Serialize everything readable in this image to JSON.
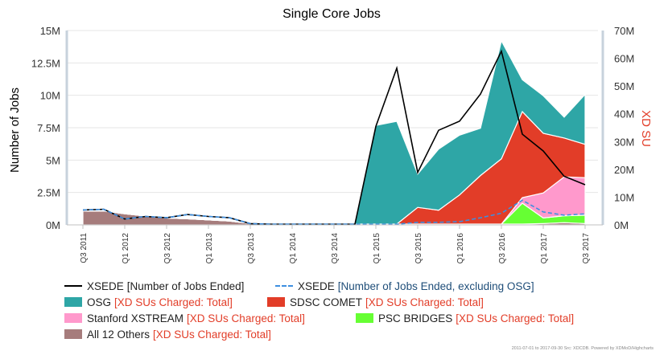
{
  "chart_data": {
    "type": "area",
    "title": "Single Core Jobs",
    "ylabel_left": "Number of Jobs",
    "ylabel_right": "XD SU",
    "left_axis": {
      "min": 0,
      "max": 15000000,
      "ticks": [
        "0M",
        "2.5M",
        "5M",
        "7.5M",
        "10M",
        "12.5M",
        "15M"
      ]
    },
    "right_axis": {
      "min": 0,
      "max": 70000000,
      "ticks": [
        "0M",
        "10M",
        "20M",
        "30M",
        "40M",
        "50M",
        "60M",
        "70M"
      ]
    },
    "x_categories": [
      "Q3 2011",
      "Q4 2011",
      "Q1 2012",
      "Q2 2012",
      "Q3 2012",
      "Q4 2012",
      "Q1 2013",
      "Q2 2013",
      "Q3 2013",
      "Q4 2013",
      "Q1 2014",
      "Q2 2014",
      "Q3 2014",
      "Q4 2014",
      "Q1 2015",
      "Q2 2015",
      "Q3 2015",
      "Q4 2015",
      "Q1 2016",
      "Q2 2016",
      "Q3 2016",
      "Q4 2016",
      "Q1 2017",
      "Q2 2017",
      "Q3 2017"
    ],
    "x_tick_labels": [
      "Q3 2011",
      "Q1 2012",
      "Q3 2012",
      "Q1 2013",
      "Q3 2013",
      "Q1 2014",
      "Q3 2014",
      "Q1 2015",
      "Q3 2015",
      "Q1 2016",
      "Q3 2016",
      "Q1 2017",
      "Q3 2017"
    ],
    "stacked_areas": [
      {
        "name": "All 12 Others",
        "unit": "XD SUs Charged: Total",
        "color": "#a67c7c",
        "values": [
          5.0,
          5.0,
          4.0,
          3.2,
          2.5,
          2.2,
          1.8,
          1.4,
          0.5,
          0.3,
          0.3,
          0.3,
          0.3,
          0.3,
          0.3,
          0.3,
          0.3,
          0.3,
          0.3,
          0.3,
          0.3,
          0.3,
          0.5,
          0.8,
          0.5
        ]
      },
      {
        "name": "PSC BRIDGES",
        "unit": "XD SUs Charged: Total",
        "color": "#66ff33",
        "values": [
          0,
          0,
          0,
          0,
          0,
          0,
          0,
          0,
          0,
          0,
          0,
          0,
          0,
          0,
          0,
          0,
          0,
          0,
          0,
          0,
          0,
          7.5,
          2.0,
          2.5,
          3.0
        ]
      },
      {
        "name": "Stanford XSTREAM",
        "unit": "XD SUs Charged: Total",
        "color": "#ff99cc",
        "values": [
          0,
          0,
          0,
          0,
          0,
          0,
          0,
          0,
          0,
          0,
          0,
          0,
          0,
          0,
          0,
          0,
          0,
          0,
          0,
          0,
          0,
          2.0,
          9.0,
          14.0,
          13.5
        ]
      },
      {
        "name": "SDSC COMET",
        "unit": "XD SUs Charged: Total",
        "color": "#e23d28",
        "values": [
          0,
          0,
          0,
          0,
          0,
          0,
          0,
          0,
          0,
          0,
          0,
          0,
          0,
          0,
          0,
          0,
          6.0,
          5.0,
          10.5,
          17.5,
          23.5,
          31.0,
          21.5,
          14.0,
          12.0
        ]
      },
      {
        "name": "OSG",
        "unit": "XD SUs Charged: Total",
        "color": "#2ea6a6",
        "values": [
          0,
          0,
          0,
          0,
          0,
          0,
          0,
          0,
          0,
          0,
          0,
          0,
          0,
          0,
          35.5,
          37.0,
          12.0,
          22.0,
          21.5,
          17.0,
          42.5,
          11.5,
          13.5,
          7.5,
          18.0
        ]
      }
    ],
    "lines": [
      {
        "name": "XSEDE",
        "unit": "Number of Jobs Ended",
        "color": "#000000",
        "axis": "left",
        "values": [
          1.15,
          1.2,
          0.45,
          0.65,
          0.55,
          0.8,
          0.65,
          0.55,
          0.1,
          0.05,
          0.05,
          0.05,
          0.05,
          0.05,
          7.6,
          12.1,
          4.05,
          7.3,
          8.0,
          10.1,
          13.4,
          7.0,
          5.7,
          3.75,
          3.1
        ]
      },
      {
        "name": "XSEDE",
        "unit": "Number of Jobs Ended, excluding OSG",
        "color": "#3d8fe0",
        "axis": "left",
        "dashed": true,
        "values": [
          1.15,
          1.2,
          0.45,
          0.65,
          0.55,
          0.8,
          0.65,
          0.55,
          0.1,
          0.05,
          0.05,
          0.05,
          0.05,
          0.05,
          0.05,
          0.05,
          0.2,
          0.2,
          0.25,
          0.55,
          0.9,
          1.9,
          1.0,
          0.75,
          0.85
        ]
      }
    ]
  },
  "legend": [
    [
      {
        "kind": "line",
        "color": "#000000",
        "name": "XSEDE",
        "detail": "[Number of Jobs Ended]"
      },
      {
        "kind": "dash",
        "color": "#3d8fe0",
        "name": "XSEDE",
        "detail": "[Number of Jobs Ended, excluding OSG]"
      }
    ],
    [
      {
        "kind": "swatch",
        "color": "#2ea6a6",
        "name": "OSG",
        "detail": "[XD SUs Charged: Total]"
      },
      {
        "kind": "swatch",
        "color": "#e23d28",
        "name": "SDSC COMET",
        "detail": "[XD SUs Charged: Total]"
      }
    ],
    [
      {
        "kind": "swatch",
        "color": "#ff99cc",
        "name": "Stanford XSTREAM",
        "detail": "[XD SUs Charged: Total]"
      },
      {
        "kind": "swatch",
        "color": "#66ff33",
        "name": "PSC BRIDGES",
        "detail": "[XD SUs Charged: Total]"
      }
    ],
    [
      {
        "kind": "swatch",
        "color": "#a67c7c",
        "name": "All 12 Others",
        "detail": "[XD SUs Charged: Total]"
      }
    ]
  ],
  "credit": "2011-07-01 to 2017-09-30 Src: XDCDB. Powered by XDMoD/Highcharts"
}
